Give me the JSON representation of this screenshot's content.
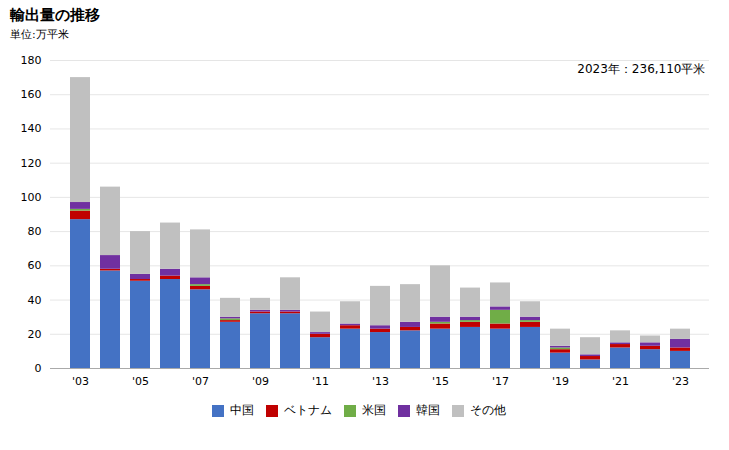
{
  "chart_data": {
    "type": "bar",
    "title": "輸出量の推移",
    "ylabel": "単位:万平米",
    "annotation": "2023年：236,110平米",
    "categories": [
      "'03",
      null,
      "'05",
      null,
      "'07",
      null,
      "'09",
      null,
      "'11",
      null,
      "'13",
      null,
      "'15",
      null,
      "'17",
      null,
      "'19",
      null,
      "'21",
      null,
      "'23"
    ],
    "series": [
      {
        "name": "中国",
        "color": "#4472C4",
        "values": [
          87,
          57,
          51,
          52,
          46,
          27,
          32,
          32,
          18,
          23,
          21,
          22,
          23,
          24,
          23,
          24,
          9,
          5,
          12,
          11,
          10
        ]
      },
      {
        "name": "ベトナム",
        "color": "#C00000",
        "values": [
          5,
          1,
          1,
          2,
          2,
          1,
          1,
          1,
          2,
          2,
          2,
          2,
          3,
          3,
          3,
          3,
          2,
          2,
          2,
          2,
          2
        ]
      },
      {
        "name": "米国",
        "color": "#70AD47",
        "values": [
          1,
          0,
          0,
          0,
          1,
          1,
          0,
          0,
          0,
          0,
          0,
          0,
          1,
          1,
          8,
          1,
          1,
          0,
          0,
          0,
          0
        ]
      },
      {
        "name": "韓国",
        "color": "#7030A0",
        "values": [
          4,
          8,
          3,
          4,
          4,
          1,
          1,
          1,
          1,
          1,
          2,
          3,
          3,
          2,
          2,
          2,
          1,
          1,
          1,
          2,
          5
        ]
      },
      {
        "name": "その他",
        "color": "#C0C0C0",
        "values": [
          73,
          40,
          25,
          27,
          28,
          11,
          7,
          19,
          12,
          13,
          23,
          22,
          30,
          17,
          14,
          9,
          10,
          10,
          7,
          4,
          6
        ]
      }
    ],
    "stacked": true,
    "ylim": [
      0,
      180
    ],
    "yticks": [
      0,
      20,
      40,
      60,
      80,
      100,
      120,
      140,
      160,
      180
    ],
    "grid": true,
    "legend": "bottom"
  }
}
